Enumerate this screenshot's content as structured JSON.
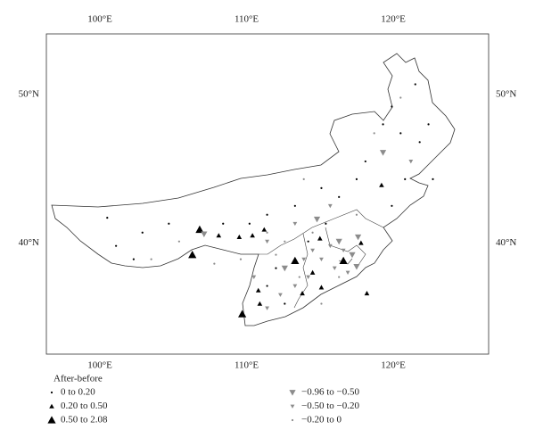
{
  "map": {
    "lonlim": [
      96.35,
      126.5
    ],
    "latlim": [
      32.5,
      54.1
    ],
    "lonticks": [
      {
        "value": 100,
        "label": "100°E"
      },
      {
        "value": 110,
        "label": "110°E"
      },
      {
        "value": 120,
        "label": "120°E"
      }
    ],
    "latticks": [
      {
        "value": 50,
        "label": "50°N"
      },
      {
        "value": 40,
        "label": "40°N"
      }
    ],
    "legend": {
      "title": "After-before",
      "items": [
        {
          "label": "0 to 0.20",
          "marker": "dot",
          "color": "#000000"
        },
        {
          "label": "0.20 to 0.50",
          "marker": "triangle-up-small",
          "color": "#000000"
        },
        {
          "label": "0.50 to 2.08",
          "marker": "triangle-up-large",
          "color": "#000000"
        },
        {
          "label": "−0.96 to −0.50",
          "marker": "triangle-down-large",
          "color": "#8c8c8c"
        },
        {
          "label": "−0.50 to −0.20",
          "marker": "triangle-down-small",
          "color": "#8c8c8c"
        },
        {
          "label": "−0.20 to 0",
          "marker": "dot",
          "color": "#8c8c8c"
        }
      ]
    },
    "stations": [
      {
        "lon": 106.8,
        "lat": 40.9,
        "class": 2
      },
      {
        "lon": 106.3,
        "lat": 39.2,
        "class": 2
      },
      {
        "lon": 109.7,
        "lat": 35.2,
        "class": 2
      },
      {
        "lon": 113.3,
        "lat": 38.8,
        "class": 2
      },
      {
        "lon": 116.6,
        "lat": 38.8,
        "class": 2
      },
      {
        "lon": 108.1,
        "lat": 40.5,
        "class": 1
      },
      {
        "lon": 109.5,
        "lat": 40.4,
        "class": 1
      },
      {
        "lon": 110.4,
        "lat": 40.5,
        "class": 1
      },
      {
        "lon": 111.2,
        "lat": 40.9,
        "class": 1
      },
      {
        "lon": 119.2,
        "lat": 43.9,
        "class": 1
      },
      {
        "lon": 115.0,
        "lat": 40.3,
        "class": 1
      },
      {
        "lon": 115.1,
        "lat": 37.0,
        "class": 1
      },
      {
        "lon": 113.8,
        "lat": 36.6,
        "class": 1
      },
      {
        "lon": 110.8,
        "lat": 36.8,
        "class": 1
      },
      {
        "lon": 110.9,
        "lat": 35.9,
        "class": 1
      },
      {
        "lon": 117.8,
        "lat": 40.0,
        "class": 1
      },
      {
        "lon": 118.2,
        "lat": 36.6,
        "class": 1
      },
      {
        "lon": 114.5,
        "lat": 38.0,
        "class": 1
      },
      {
        "lon": 107.1,
        "lat": 40.6,
        "class": 3
      },
      {
        "lon": 117.6,
        "lat": 40.4,
        "class": 3
      },
      {
        "lon": 117.2,
        "lat": 39.2,
        "class": 3
      },
      {
        "lon": 116.3,
        "lat": 40.1,
        "class": 3
      },
      {
        "lon": 117.5,
        "lat": 38.4,
        "class": 3
      },
      {
        "lon": 112.6,
        "lat": 38.3,
        "class": 3
      },
      {
        "lon": 114.8,
        "lat": 41.6,
        "class": 3
      },
      {
        "lon": 119.3,
        "lat": 46.1,
        "class": 3
      },
      {
        "lon": 115.7,
        "lat": 39.8,
        "class": 4
      },
      {
        "lon": 116.6,
        "lat": 39.5,
        "class": 4
      },
      {
        "lon": 115.1,
        "lat": 38.9,
        "class": 4
      },
      {
        "lon": 116.0,
        "lat": 38.3,
        "class": 4
      },
      {
        "lon": 113.9,
        "lat": 38.9,
        "class": 4
      },
      {
        "lon": 114.2,
        "lat": 37.7,
        "class": 4
      },
      {
        "lon": 113.3,
        "lat": 37.1,
        "class": 4
      },
      {
        "lon": 112.3,
        "lat": 36.5,
        "class": 4
      },
      {
        "lon": 111.4,
        "lat": 35.6,
        "class": 4
      },
      {
        "lon": 116.9,
        "lat": 38.0,
        "class": 4
      },
      {
        "lon": 115.7,
        "lat": 42.5,
        "class": 4
      },
      {
        "lon": 114.5,
        "lat": 39.5,
        "class": 4
      },
      {
        "lon": 113.3,
        "lat": 41.3,
        "class": 4
      },
      {
        "lon": 121.2,
        "lat": 45.5,
        "class": 4
      },
      {
        "lon": 111.4,
        "lat": 40.1,
        "class": 4
      },
      {
        "lon": 110.5,
        "lat": 37.7,
        "class": 4
      },
      {
        "lon": 121.5,
        "lat": 50.7,
        "class": 0
      },
      {
        "lon": 119.9,
        "lat": 49.2,
        "class": 0
      },
      {
        "lon": 119.3,
        "lat": 48.0,
        "class": 0
      },
      {
        "lon": 120.5,
        "lat": 47.4,
        "class": 0
      },
      {
        "lon": 121.8,
        "lat": 46.8,
        "class": 0
      },
      {
        "lon": 120.8,
        "lat": 44.3,
        "class": 0
      },
      {
        "lon": 119.9,
        "lat": 42.5,
        "class": 0
      },
      {
        "lon": 117.5,
        "lat": 44.3,
        "class": 0
      },
      {
        "lon": 116.3,
        "lat": 43.1,
        "class": 0
      },
      {
        "lon": 115.1,
        "lat": 43.7,
        "class": 0
      },
      {
        "lon": 113.3,
        "lat": 42.5,
        "class": 0
      },
      {
        "lon": 111.4,
        "lat": 41.9,
        "class": 0
      },
      {
        "lon": 110.2,
        "lat": 41.3,
        "class": 0
      },
      {
        "lon": 108.4,
        "lat": 41.3,
        "class": 0
      },
      {
        "lon": 104.7,
        "lat": 41.3,
        "class": 0
      },
      {
        "lon": 102.9,
        "lat": 40.7,
        "class": 0
      },
      {
        "lon": 101.1,
        "lat": 39.8,
        "class": 0
      },
      {
        "lon": 100.5,
        "lat": 41.7,
        "class": 0
      },
      {
        "lon": 102.3,
        "lat": 38.9,
        "class": 0
      },
      {
        "lon": 112.0,
        "lat": 38.3,
        "class": 0
      },
      {
        "lon": 112.6,
        "lat": 35.9,
        "class": 0
      },
      {
        "lon": 111.4,
        "lat": 37.1,
        "class": 0
      },
      {
        "lon": 114.2,
        "lat": 40.1,
        "class": 0
      },
      {
        "lon": 115.4,
        "lat": 41.3,
        "class": 0
      },
      {
        "lon": 118.1,
        "lat": 45.5,
        "class": 0
      },
      {
        "lon": 122.4,
        "lat": 48.0,
        "class": 0
      },
      {
        "lon": 122.7,
        "lat": 44.3,
        "class": 0
      },
      {
        "lon": 114.5,
        "lat": 40.7,
        "class": 5
      },
      {
        "lon": 112.6,
        "lat": 40.1,
        "class": 5
      },
      {
        "lon": 112.0,
        "lat": 39.2,
        "class": 5
      },
      {
        "lon": 113.6,
        "lat": 37.7,
        "class": 5
      },
      {
        "lon": 115.1,
        "lat": 35.9,
        "class": 5
      },
      {
        "lon": 116.3,
        "lat": 37.7,
        "class": 5
      },
      {
        "lon": 118.7,
        "lat": 47.4,
        "class": 5
      },
      {
        "lon": 120.5,
        "lat": 49.8,
        "class": 5
      },
      {
        "lon": 117.5,
        "lat": 41.9,
        "class": 5
      },
      {
        "lon": 109.6,
        "lat": 38.9,
        "class": 5
      },
      {
        "lon": 107.8,
        "lat": 38.6,
        "class": 5
      },
      {
        "lon": 105.4,
        "lat": 40.1,
        "class": 5
      },
      {
        "lon": 103.5,
        "lat": 38.9,
        "class": 5
      },
      {
        "lon": 113.9,
        "lat": 44.3,
        "class": 5
      },
      {
        "lon": 111.4,
        "lat": 40.7,
        "class": 5
      }
    ]
  }
}
